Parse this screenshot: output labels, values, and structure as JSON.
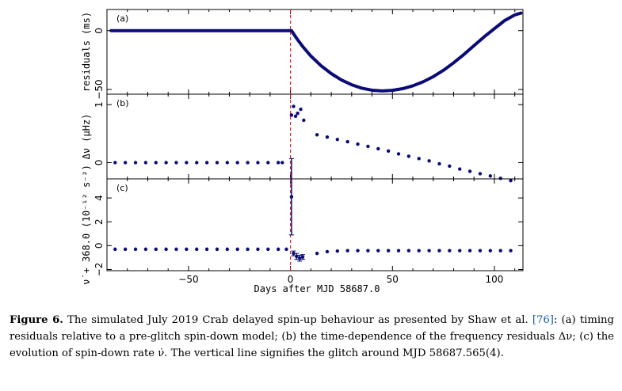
{
  "colors": {
    "marker": "#0b0b78",
    "glitch_line": "#d62728",
    "axis": "#000000"
  },
  "chart_data": [
    {
      "type": "line",
      "panel_label": "(a)",
      "ylabel": "residuals (ms)",
      "xlim": [
        -90,
        114
      ],
      "ylim": [
        -54,
        18
      ],
      "yticks": [
        -50,
        0
      ],
      "series": [
        {
          "x": [
            -88,
            -80,
            -70,
            -60,
            -50,
            -40,
            -30,
            -20,
            -10,
            0,
            0.5,
            3,
            6,
            10,
            15,
            20,
            25,
            30,
            35,
            40,
            45,
            50,
            55,
            60,
            65,
            70,
            75,
            80,
            85,
            90,
            95,
            100,
            105,
            110,
            113
          ],
          "values": [
            0,
            0,
            0,
            0,
            0,
            0,
            0,
            0,
            0,
            0,
            0,
            -6.5,
            -13.5,
            -21.6,
            -29.8,
            -36.5,
            -41.9,
            -46,
            -48.9,
            -50.6,
            -51.2,
            -50.7,
            -49.3,
            -46.9,
            -43.5,
            -39.1,
            -33.7,
            -27.3,
            -20.3,
            -12.7,
            -5.2,
            1.7,
            8.6,
            13.4,
            14.9
          ]
        }
      ]
    },
    {
      "type": "scatter",
      "panel_label": "(b)",
      "ylabel": "Δν (μHz)",
      "xlim": [
        -90,
        114
      ],
      "ylim": [
        -0.28,
        1.18
      ],
      "yticks": [
        0,
        1
      ],
      "series": [
        {
          "x": [
            -86,
            -81,
            -76,
            -71,
            -66,
            -61,
            -56,
            -51,
            -46,
            -41,
            -36,
            -31,
            -26,
            -21,
            -16,
            -11,
            -6,
            -4,
            0.5,
            1.5,
            2.5,
            3.5,
            5,
            6.5,
            13,
            18,
            23,
            28,
            33,
            38,
            43,
            48,
            53,
            58,
            63,
            68,
            73,
            78,
            83,
            88,
            93,
            98,
            103,
            108
          ],
          "values": [
            0,
            0,
            0,
            0,
            0,
            0,
            0,
            0,
            0,
            0,
            0,
            0,
            0,
            0,
            0,
            0,
            0,
            0,
            0.82,
            0.97,
            0.8,
            0.85,
            0.92,
            0.73,
            0.48,
            0.44,
            0.4,
            0.36,
            0.32,
            0.28,
            0.24,
            0.2,
            0.15,
            0.11,
            0.07,
            0.03,
            -0.02,
            -0.06,
            -0.11,
            -0.15,
            -0.19,
            -0.23,
            -0.27,
            -0.31
          ]
        }
      ]
    },
    {
      "type": "scatter",
      "panel_label": "(c)",
      "ylabel": "ν̇ + 368.0 (10⁻¹² s⁻²)",
      "xlim": [
        -90,
        114
      ],
      "ylim": [
        -2.1,
        5.6
      ],
      "yticks": [
        -2,
        0,
        2,
        4
      ],
      "series": [
        {
          "x": [
            -86,
            -81,
            -76,
            -71,
            -66,
            -61,
            -56,
            -51,
            -46,
            -41,
            -36,
            -31,
            -26,
            -21,
            -16,
            -11,
            -6,
            -2,
            0.5,
            1.5,
            3,
            4.5,
            6,
            13,
            18,
            23,
            28,
            33,
            38,
            43,
            48,
            53,
            58,
            63,
            68,
            73,
            78,
            83,
            88,
            93,
            98,
            103,
            108
          ],
          "values": [
            -0.3,
            -0.3,
            -0.3,
            -0.3,
            -0.3,
            -0.3,
            -0.3,
            -0.3,
            -0.3,
            -0.3,
            -0.3,
            -0.3,
            -0.3,
            -0.3,
            -0.3,
            -0.3,
            -0.3,
            -0.3,
            4.1,
            -0.65,
            -0.9,
            -1.05,
            -0.95,
            -0.65,
            -0.5,
            -0.45,
            -0.42,
            -0.42,
            -0.42,
            -0.42,
            -0.42,
            -0.42,
            -0.42,
            -0.42,
            -0.42,
            -0.42,
            -0.42,
            -0.42,
            -0.42,
            -0.42,
            -0.42,
            -0.42,
            -0.42
          ],
          "errors": [
            0,
            0,
            0,
            0,
            0,
            0,
            0,
            0,
            0,
            0,
            0,
            0,
            0,
            0,
            0,
            0,
            0,
            0,
            3.2,
            0.2,
            0.25,
            0.25,
            0.2,
            0,
            0,
            0,
            0,
            0,
            0,
            0,
            0,
            0,
            0,
            0,
            0,
            0,
            0,
            0,
            0,
            0,
            0,
            0,
            0
          ]
        }
      ],
      "xticks": [
        -50,
        0,
        50,
        100
      ],
      "xlabel": "Days after MJD 58687.0"
    }
  ],
  "caption": {
    "figure_label": "Figure 6.",
    "text_part1": "The simulated July 2019 Crab delayed spin-up behaviour as presented by Shaw et al.",
    "ref": "[76]",
    "text_part2": ": (a) timing residuals relative to a pre-glitch spin-down model; (b) the time-dependence of the frequency residuals Δν; (c) the evolution of spin-down rate ν̇. The vertical line signifies the glitch around MJD 58687.565(4)."
  }
}
